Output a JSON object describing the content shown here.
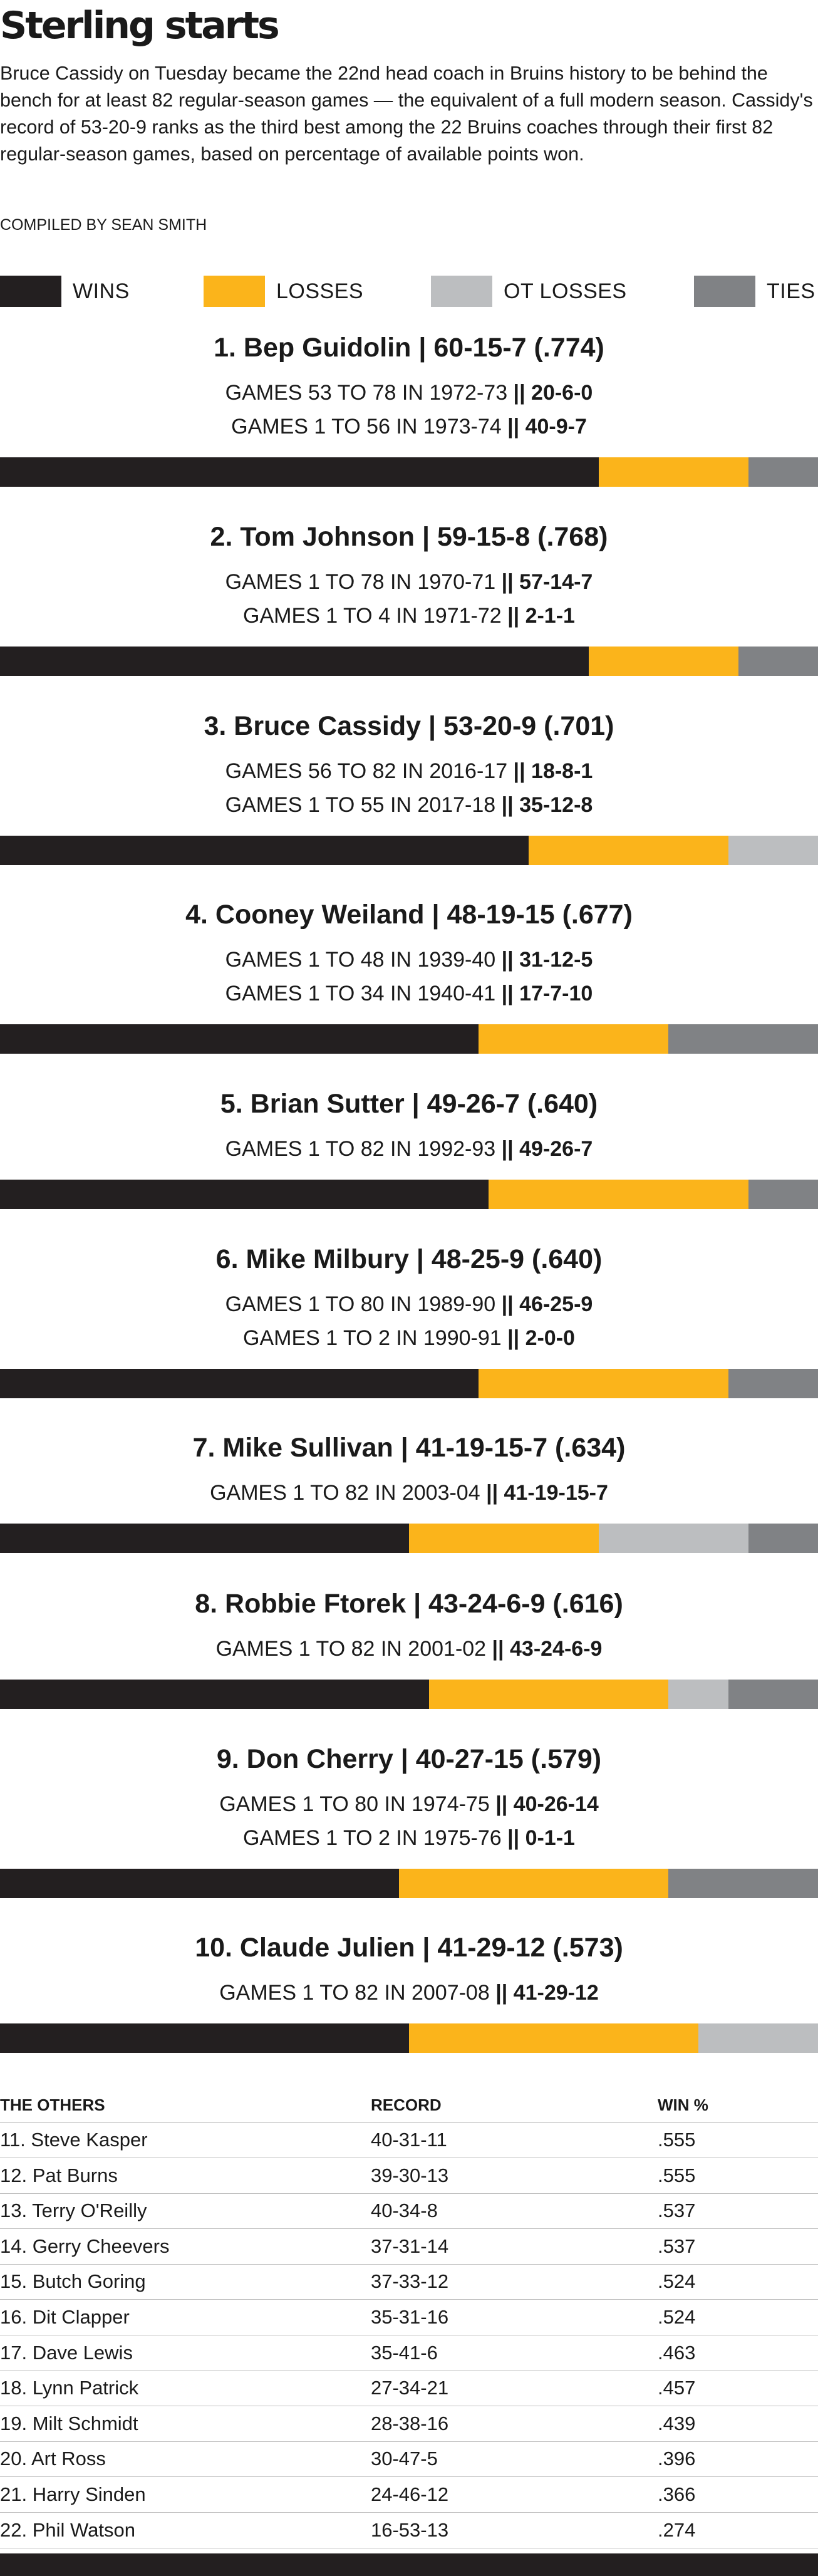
{
  "title": "Sterling starts",
  "intro": "Bruce Cassidy on Tuesday became the 22nd head coach in Bruins history to be behind the bench for at least 82 regular-season games — the equivalent of a full modern season. Cassidy's record of 53-20-9 ranks as the third best among the 22 Bruins coaches through their first 82 regular-season games, based on percentage of available points won.",
  "credit": "COMPILED BY SEAN SMITH",
  "colors": {
    "wins": "#231f20",
    "losses": "#fbb41b",
    "ot_losses": "#bcbec0",
    "ties": "#808285"
  },
  "chart_data": {
    "type": "bar",
    "orientation": "horizontal-stacked",
    "legend": [
      {
        "key": "wins",
        "label": "WINS"
      },
      {
        "key": "losses",
        "label": "LOSSES"
      },
      {
        "key": "ot_losses",
        "label": "OT LOSSES"
      },
      {
        "key": "ties",
        "label": "TIES"
      }
    ],
    "total_games": 82,
    "coaches": [
      {
        "heading": "1. Bep Guidolin  |  60-15-7 (.774)",
        "wins": 60,
        "losses": 15,
        "ot_losses": 0,
        "ties": 7,
        "seasons": [
          {
            "text": "GAMES 53 TO 78 IN 1972-73",
            "record": "20-6-0"
          },
          {
            "text": "GAMES 1 TO 56 IN 1973-74",
            "record": "40-9-7"
          }
        ]
      },
      {
        "heading": "2. Tom Johnson  |  59-15-8 (.768)",
        "wins": 59,
        "losses": 15,
        "ot_losses": 0,
        "ties": 8,
        "seasons": [
          {
            "text": "GAMES 1 TO 78 IN 1970-71",
            "record": "57-14-7"
          },
          {
            "text": "GAMES 1 TO 4 IN 1971-72",
            "record": "2-1-1"
          }
        ]
      },
      {
        "heading": "3. Bruce Cassidy  |  53-20-9 (.701)",
        "wins": 53,
        "losses": 20,
        "ot_losses": 9,
        "ties": 0,
        "seasons": [
          {
            "text": "GAMES 56 TO 82 IN 2016-17",
            "record": "18-8-1"
          },
          {
            "text": "GAMES 1 TO 55 IN 2017-18",
            "record": "35-12-8"
          }
        ]
      },
      {
        "heading": "4. Cooney Weiland  |  48-19-15 (.677)",
        "wins": 48,
        "losses": 19,
        "ot_losses": 0,
        "ties": 15,
        "seasons": [
          {
            "text": "GAMES 1 TO 48 IN 1939-40",
            "record": "31-12-5"
          },
          {
            "text": "GAMES 1 TO 34 IN 1940-41",
            "record": "17-7-10"
          }
        ]
      },
      {
        "heading": "5. Brian Sutter  |  49-26-7 (.640)",
        "wins": 49,
        "losses": 26,
        "ot_losses": 0,
        "ties": 7,
        "seasons": [
          {
            "text": "GAMES 1 TO 82 IN 1992-93",
            "record": "49-26-7"
          }
        ]
      },
      {
        "heading": "6. Mike Milbury  |  48-25-9 (.640)",
        "wins": 48,
        "losses": 25,
        "ot_losses": 0,
        "ties": 9,
        "seasons": [
          {
            "text": "GAMES 1 TO 80 IN 1989-90",
            "record": "46-25-9"
          },
          {
            "text": "GAMES 1 TO 2 IN 1990-91",
            "record": "2-0-0"
          }
        ]
      },
      {
        "heading": "7. Mike Sullivan  |  41-19-15-7 (.634)",
        "wins": 41,
        "losses": 19,
        "ot_losses": 15,
        "ties": 7,
        "seasons": [
          {
            "text": "GAMES 1 TO 82 IN 2003-04",
            "record": "41-19-15-7"
          }
        ]
      },
      {
        "heading": "8. Robbie Ftorek  |  43-24-6-9 (.616)",
        "wins": 43,
        "losses": 24,
        "ot_losses": 6,
        "ties": 9,
        "seasons": [
          {
            "text": "GAMES 1 TO 82 IN 2001-02",
            "record": "43-24-6-9"
          }
        ]
      },
      {
        "heading": "9. Don Cherry  |  40-27-15 (.579)",
        "wins": 40,
        "losses": 27,
        "ot_losses": 0,
        "ties": 15,
        "seasons": [
          {
            "text": "GAMES 1 TO 80 IN 1974-75",
            "record": "40-26-14"
          },
          {
            "text": "GAMES 1 TO 2 IN 1975-76",
            "record": "0-1-1"
          }
        ]
      },
      {
        "heading": "10. Claude Julien  |  41-29-12 (.573)",
        "wins": 41,
        "losses": 29,
        "ot_losses": 12,
        "ties": 0,
        "seasons": [
          {
            "text": "GAMES 1 TO 82 IN 2007-08",
            "record": "41-29-12"
          }
        ]
      }
    ]
  },
  "others": {
    "headers": {
      "name": "THE OTHERS",
      "record": "RECORD",
      "win_pct": "WIN %"
    },
    "rows": [
      {
        "name": "11. Steve Kasper",
        "record": "40-31-11",
        "win_pct": ".555"
      },
      {
        "name": "12. Pat Burns",
        "record": "39-30-13",
        "win_pct": ".555"
      },
      {
        "name": "13. Terry O'Reilly",
        "record": "40-34-8",
        "win_pct": ".537"
      },
      {
        "name": "14. Gerry Cheevers",
        "record": "37-31-14",
        "win_pct": ".537"
      },
      {
        "name": "15. Butch Goring",
        "record": "37-33-12",
        "win_pct": ".524"
      },
      {
        "name": "16. Dit Clapper",
        "record": "35-31-16",
        "win_pct": ".524"
      },
      {
        "name": "17. Dave Lewis",
        "record": "35-41-6",
        "win_pct": ".463"
      },
      {
        "name": "18. Lynn Patrick",
        "record": "27-34-21",
        "win_pct": ".457"
      },
      {
        "name": "19. Milt Schmidt",
        "record": "28-38-16",
        "win_pct": ".439"
      },
      {
        "name": "20. Art Ross",
        "record": "30-47-5",
        "win_pct": ".396"
      },
      {
        "name": "21. Harry Sinden",
        "record": "24-46-12",
        "win_pct": ".366"
      },
      {
        "name": "22. Phil Watson",
        "record": "16-53-13",
        "win_pct": ".274"
      }
    ]
  }
}
